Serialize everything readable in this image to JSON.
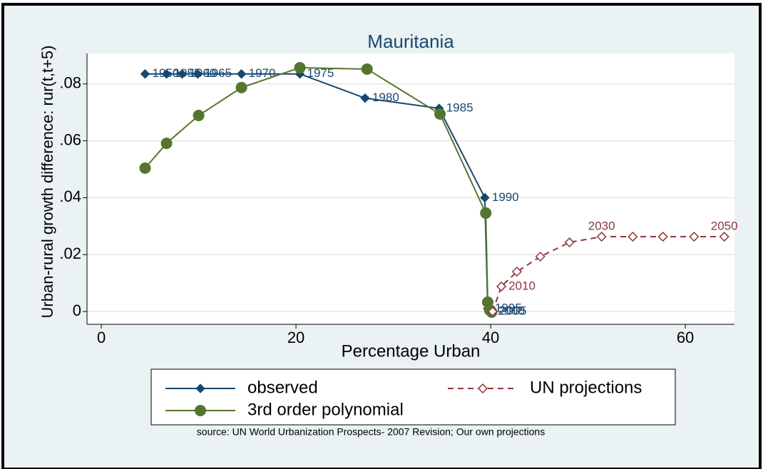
{
  "chart_data": {
    "type": "line",
    "title": "Mauritania",
    "xlabel": "Percentage Urban",
    "ylabel": "Urban-rural growth difference: rur(t,t+5)",
    "source": "source: UN World Urbanization Prospects- 2007 Revision; Our own projections",
    "xlim": [
      -1.47,
      65.05
    ],
    "ylim": [
      -0.0045,
      0.0907
    ],
    "xticks": [
      0,
      20,
      40,
      60
    ],
    "yticks": [
      {
        "value": 0,
        "label": "0"
      },
      {
        "value": 0.02,
        "label": ".02"
      },
      {
        "value": 0.04,
        "label": ".04"
      },
      {
        "value": 0.06,
        "label": ".06"
      },
      {
        "value": 0.08,
        "label": ".08"
      }
    ],
    "grid": true,
    "series": [
      {
        "name": "observed",
        "color": "#1a476f",
        "marker": "diamond",
        "dash": false,
        "x": [
          4.5,
          6.7,
          8.3,
          9.9,
          14.4,
          20.4,
          27.1,
          34.7,
          39.4,
          39.7,
          40.0,
          40.2
        ],
        "values": [
          0.0835,
          0.0835,
          0.0835,
          0.0835,
          0.0835,
          0.0835,
          0.075,
          0.0714,
          0.04,
          0.001,
          0.0,
          0.0
        ],
        "labels": [
          "1950",
          "1955",
          "1960",
          "1965",
          "1970",
          "1975",
          "1980",
          "1985",
          "1990",
          "1995",
          "2000",
          "2005"
        ]
      },
      {
        "name": "3rd order polynomial",
        "color": "#55752f",
        "marker": "circle",
        "dash": false,
        "x": [
          4.5,
          6.7,
          10.0,
          14.4,
          20.4,
          27.3,
          34.8,
          39.5,
          39.7,
          39.9,
          40.1
        ],
        "values": [
          0.0504,
          0.0591,
          0.0689,
          0.0787,
          0.0857,
          0.0852,
          0.0694,
          0.0346,
          0.0033,
          0.0005,
          -0.0002
        ]
      },
      {
        "name": "UN projections",
        "color": "#90353b",
        "marker": "hollow-diamond",
        "dash": true,
        "x": [
          40.2,
          41.1,
          42.7,
          45.1,
          48.1,
          51.4,
          54.6,
          57.7,
          60.9,
          64.0
        ],
        "values": [
          0.0,
          0.0088,
          0.014,
          0.0193,
          0.0243,
          0.0263,
          0.0263,
          0.0263,
          0.0263,
          0.0263
        ],
        "labels": [
          null,
          "2010",
          null,
          null,
          null,
          "2030",
          null,
          null,
          null,
          "2050"
        ]
      }
    ]
  }
}
